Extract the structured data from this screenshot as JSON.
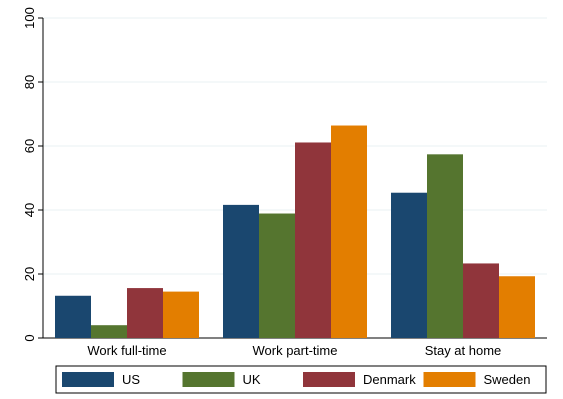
{
  "chart_data": {
    "type": "bar",
    "title": "",
    "xlabel": "",
    "ylabel": "",
    "ylim": [
      0,
      100
    ],
    "yticks": [
      0,
      20,
      40,
      60,
      80,
      100
    ],
    "grid": true,
    "legend_position": "bottom",
    "categories": [
      "Work full-time",
      "Work part-time",
      "Stay at home"
    ],
    "series": [
      {
        "name": "US",
        "color": "#1a476f",
        "values": [
          13.2,
          41.6,
          45.4
        ]
      },
      {
        "name": "UK",
        "color": "#55752f",
        "values": [
          4.0,
          38.9,
          57.4
        ]
      },
      {
        "name": "Denmark",
        "color": "#90353b",
        "values": [
          15.6,
          61.1,
          23.3
        ]
      },
      {
        "name": "Sweden",
        "color": "#e37e00",
        "values": [
          14.5,
          66.4,
          19.3
        ]
      }
    ]
  }
}
